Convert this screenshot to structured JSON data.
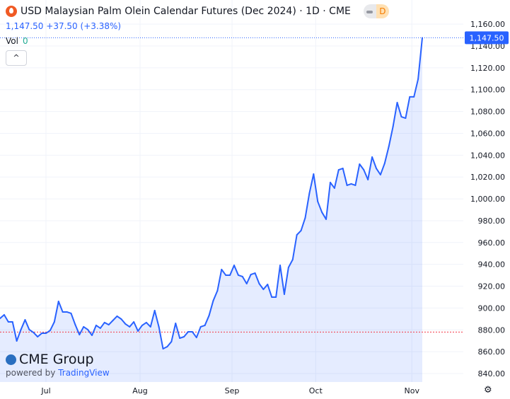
{
  "header": {
    "title": "USD Malaysian Palm Olein Calendar Futures (Dec 2024) · 1D · CME",
    "badge": "D",
    "last": "1,147.50",
    "change": "+37.50",
    "change_pct": "(+3.38%)",
    "vol_label": "Vol",
    "vol_value": "0",
    "collapse": "^"
  },
  "branding": {
    "logo": "CME Group",
    "powered_by": "powered by",
    "tv": "TradingView"
  },
  "price_label": "1,147.50",
  "settings_icon": "⚙",
  "colors": {
    "line": "#2962ff",
    "fill": "rgba(41,98,255,0.12)",
    "baseline": "#f23645"
  },
  "chart_data": {
    "type": "area",
    "title": "USD Malaysian Palm Olein Calendar Futures (Dec 2024)",
    "xlabel": "",
    "ylabel": "",
    "ylim": [
      830,
      1167
    ],
    "x_ticks": [
      {
        "label": "Jul",
        "index": 11
      },
      {
        "label": "Aug",
        "index": 33.5
      },
      {
        "label": "Sep",
        "index": 55.5
      },
      {
        "label": "Oct",
        "index": 75.5
      },
      {
        "label": "Nov",
        "index": 98.5
      }
    ],
    "y_ticks": [
      "840.00",
      "860.00",
      "880.00",
      "900.00",
      "920.00",
      "940.00",
      "960.00",
      "980.00",
      "1,000.00",
      "1,020.00",
      "1,040.00",
      "1,060.00",
      "1,080.00",
      "1,100.00",
      "1,120.00",
      "1,140.00",
      "1,160.00"
    ],
    "y_tick_values": [
      840,
      860,
      880,
      900,
      920,
      940,
      960,
      980,
      1000,
      1020,
      1040,
      1060,
      1080,
      1100,
      1120,
      1140,
      1160
    ],
    "baseline": 878,
    "last_value": 1147.5,
    "values": [
      890.5,
      893.8,
      887.3,
      887.3,
      869.8,
      880.2,
      889.2,
      880.2,
      877.6,
      873.7,
      876.9,
      876.9,
      879.5,
      887.3,
      906.1,
      896.4,
      896.4,
      895.1,
      884.7,
      875.6,
      882.8,
      880.2,
      875.0,
      884.1,
      881.5,
      886.7,
      884.7,
      888.6,
      892.5,
      889.9,
      885.4,
      882.8,
      887.3,
      878.9,
      884.1,
      886.7,
      882.8,
      897.7,
      882.8,
      862.7,
      864.6,
      869.2,
      886.0,
      872.4,
      873.7,
      878.2,
      878.2,
      873.0,
      882.8,
      884.1,
      893.1,
      906.7,
      915.8,
      935.3,
      930.1,
      930.1,
      939.1,
      930.1,
      928.8,
      922.3,
      930.7,
      932.0,
      922.3,
      917.1,
      921.6,
      910.0,
      910.0,
      939.1,
      912.6,
      937.2,
      944.3,
      967.0,
      970.9,
      982.6,
      1005.2,
      1022.7,
      997.5,
      987.7,
      981.3,
      1015.0,
      1009.8,
      1026.6,
      1027.9,
      1012.4,
      1013.7,
      1012.4,
      1031.8,
      1026.6,
      1017.6,
      1038.3,
      1027.9,
      1022.1,
      1032.5,
      1048.0,
      1066.2,
      1088.2,
      1075.2,
      1073.9,
      1093.4,
      1093.4,
      1109.6,
      1147.5
    ]
  }
}
